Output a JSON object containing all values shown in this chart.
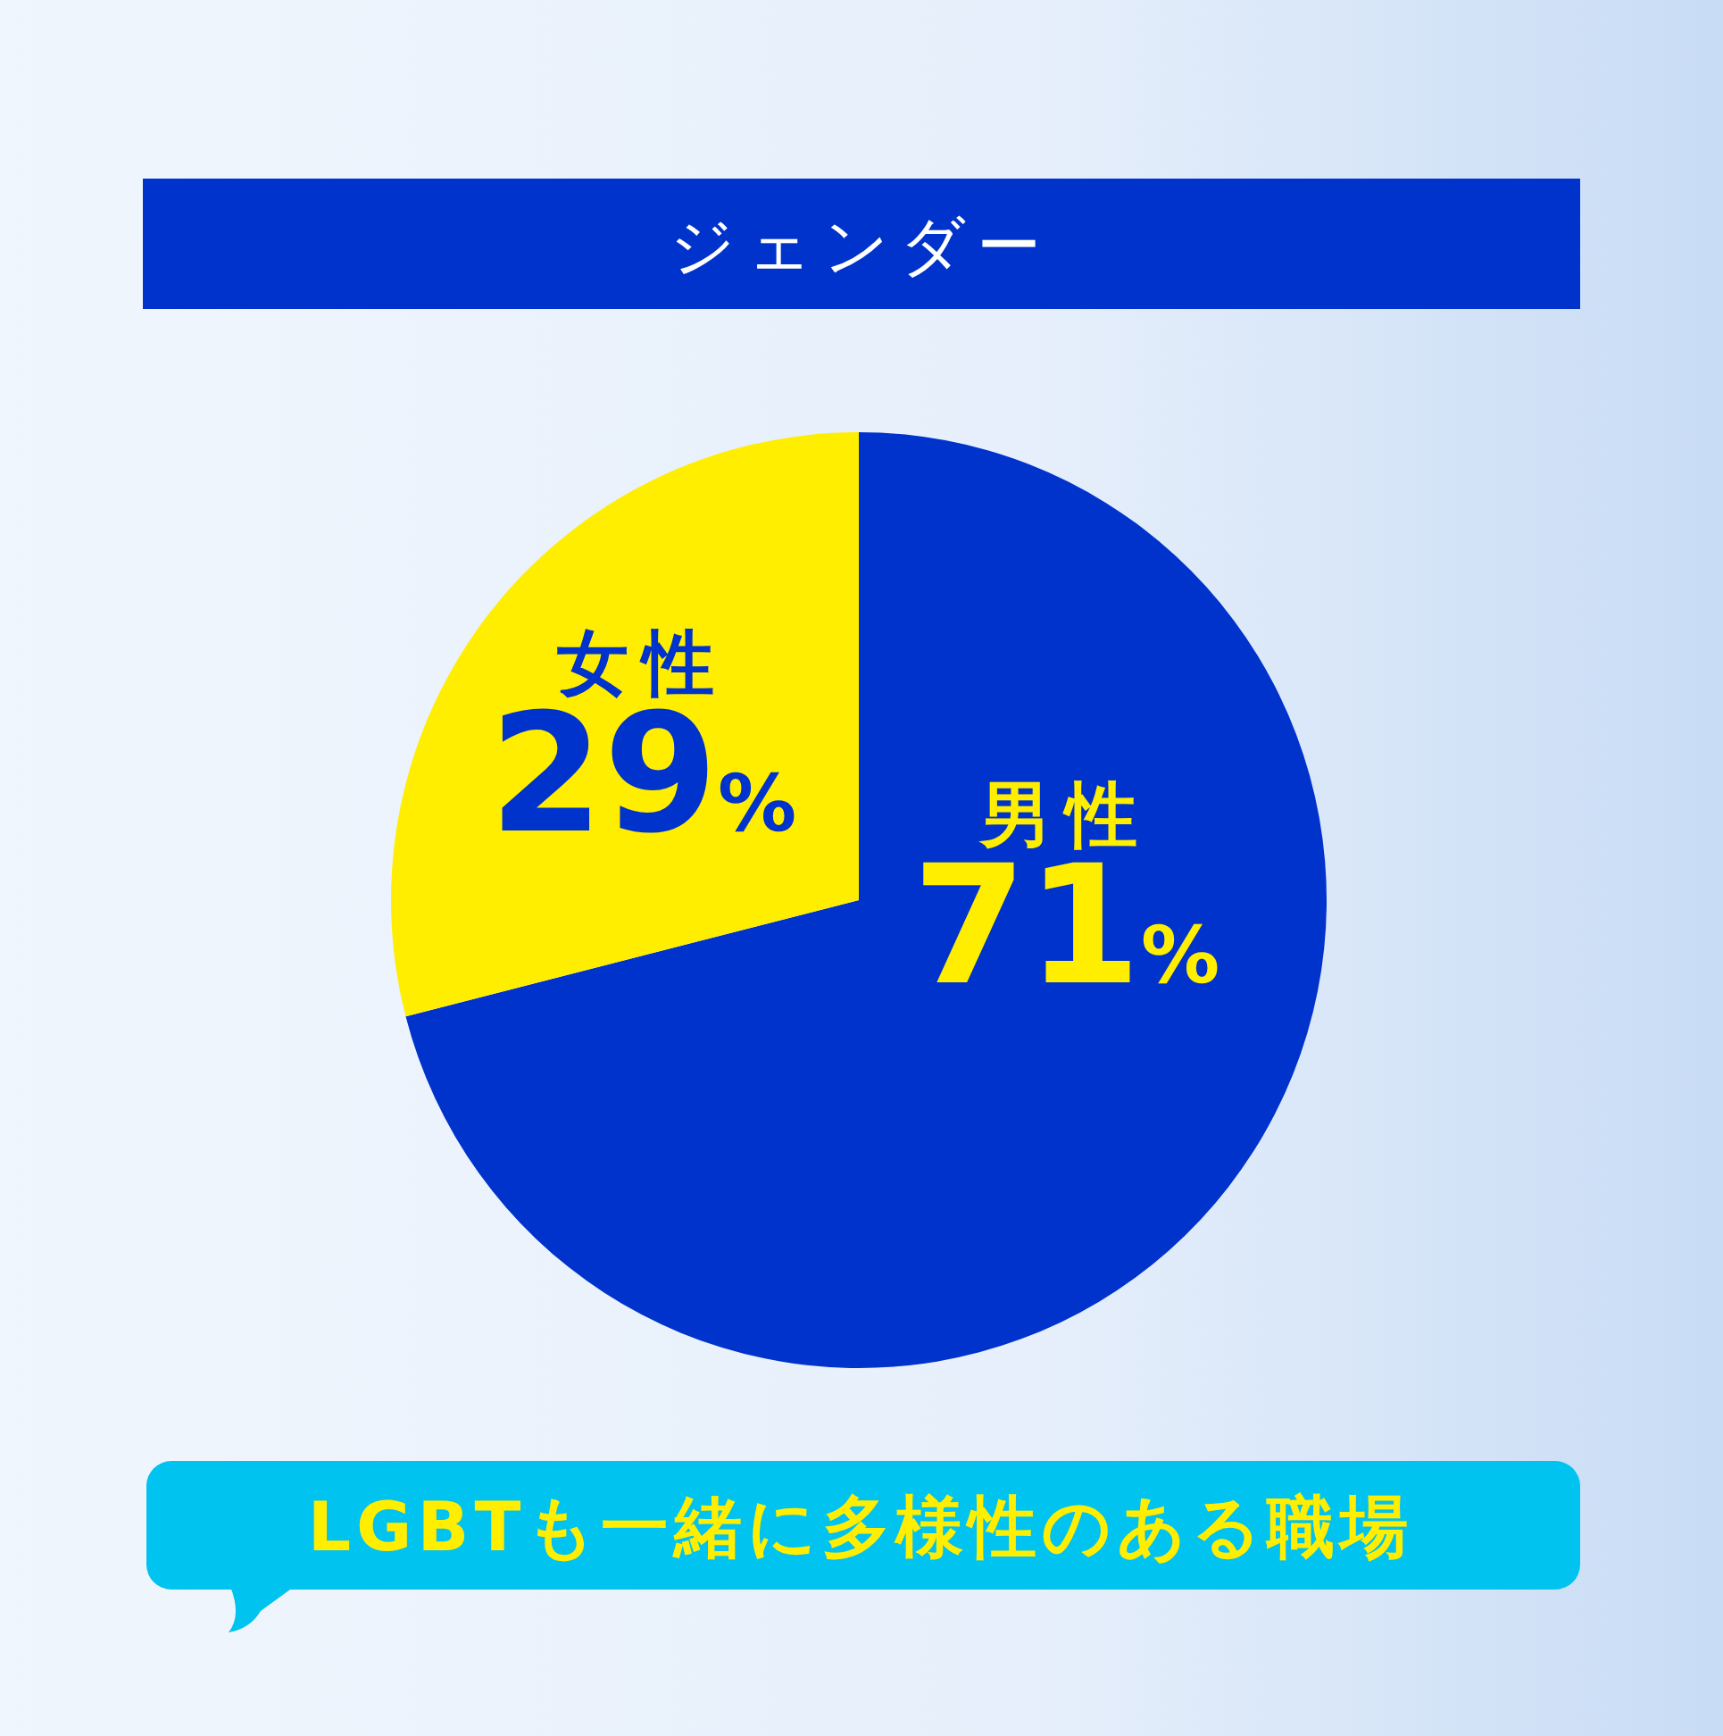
{
  "chart_data": {
    "type": "pie",
    "title": "ジェンダー",
    "categories": [
      "男性",
      "女性"
    ],
    "values": [
      71,
      29
    ],
    "colors": [
      "#0033cc",
      "#ffee00"
    ],
    "value_labels": [
      "71%",
      "29%"
    ],
    "annotations": [
      "LGBTも一緒に多様性のある職場"
    ]
  }
}
